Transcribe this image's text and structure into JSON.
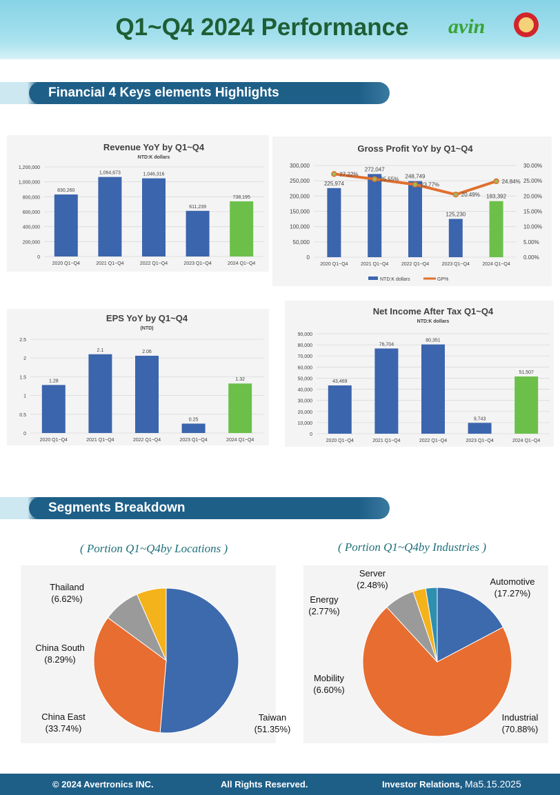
{
  "header": {
    "title": "Q1~Q4 2024 Performance",
    "logo_text": "avin"
  },
  "sections": {
    "highlights": "Financial 4 Keys elements Highlights",
    "segments": "Segments Breakdown"
  },
  "colors": {
    "bar_blue": "#3b65ad",
    "bar_green": "#6cc04a",
    "gp_line": "#e0702f",
    "pie_blue": "#3d6aad",
    "pie_orange": "#e76d30",
    "pie_gray": "#9a9a9a",
    "pie_yellow": "#f4b21b",
    "pie_teal": "#2e8fb0"
  },
  "chart_data": [
    {
      "type": "bar",
      "title": "Revenue YoY by Q1~Q4",
      "subtitle": "NTD:K dollars",
      "categories": [
        "2020 Q1~Q4",
        "2021 Q1~Q4",
        "2022 Q1~Q4",
        "2023 Q1~Q4",
        "2024 Q1~Q4"
      ],
      "values": [
        830260,
        1064673,
        1046316,
        611239,
        738195
      ],
      "value_labels": [
        "830,260",
        "1,064,673",
        "1,046,316",
        "611,239",
        "738,195"
      ],
      "ylim": [
        0,
        1200000
      ],
      "yticks": [
        "0",
        "200,000",
        "400,000",
        "600,000",
        "800,000",
        "1,000,000",
        "1,200,000"
      ]
    },
    {
      "type": "bar",
      "title": "Gross Profit YoY by Q1~Q4",
      "categories": [
        "2020 Q1~Q4",
        "2021 Q1~Q4",
        "2022 Q1~Q4",
        "2023 Q1~Q4",
        "2024 Q1~Q4"
      ],
      "values": [
        225974,
        272047,
        248749,
        125230,
        183392
      ],
      "value_labels": [
        "225,974",
        "272,047",
        "248,749",
        "125,230",
        "183,392"
      ],
      "ylim": [
        0,
        300000
      ],
      "yticks": [
        "0",
        "50,000",
        "100,000",
        "150,000",
        "200,000",
        "250,000",
        "300,000"
      ],
      "line": {
        "values": [
          27.22,
          25.55,
          23.77,
          20.49,
          24.84
        ],
        "labels": [
          "27.22%",
          "25.55%",
          "23.77%",
          "20.49%",
          "24.84%"
        ],
        "ylim": [
          0,
          30
        ]
      },
      "y2ticks": [
        "0.00%",
        "5.00%",
        "10.00%",
        "15.00%",
        "20.00%",
        "25.00%",
        "30.00%"
      ],
      "legend": [
        "NTD:K dollars",
        "GP%"
      ]
    },
    {
      "type": "bar",
      "title": "EPS YoY by Q1~Q4",
      "subtitle": "(NTD)",
      "categories": [
        "2020 Q1~Q4",
        "2021 Q1~Q4",
        "2022 Q1~Q4",
        "2023 Q1~Q4",
        "2024 Q1~Q4"
      ],
      "values": [
        1.28,
        2.1,
        2.06,
        0.25,
        1.32
      ],
      "value_labels": [
        "1.28",
        "2.1",
        "2.06",
        "0.25",
        "1.32"
      ],
      "ylim": [
        0,
        2.5
      ],
      "yticks": [
        "0",
        "0.5",
        "1",
        "1.5",
        "2",
        "2.5"
      ]
    },
    {
      "type": "bar",
      "title": "Net Income After Tax Q1~Q4",
      "subtitle": "NTD:K dollars",
      "categories": [
        "2020 Q1~Q4",
        "2021 Q1~Q4",
        "2022 Q1~Q4",
        "2023 Q1~Q4",
        "2024 Q1~Q4"
      ],
      "values": [
        43469,
        76704,
        80351,
        9743,
        51507
      ],
      "value_labels": [
        "43,469",
        "76,704",
        "80,351",
        "9,743",
        "51,507"
      ],
      "ylim": [
        0,
        90000
      ],
      "yticks": [
        "0",
        "10,000",
        "20,000",
        "30,000",
        "40,000",
        "50,000",
        "60,000",
        "70,000",
        "80,000",
        "90,000"
      ]
    },
    {
      "type": "pie",
      "title": "( Portion Q1~Q4by Locations )",
      "slices": [
        {
          "label": "Taiwan",
          "value": 51.35,
          "text": "(51.35%)"
        },
        {
          "label": "China East",
          "value": 33.74,
          "text": "(33.74%)"
        },
        {
          "label": "China South",
          "value": 8.29,
          "text": "(8.29%)"
        },
        {
          "label": "Thailand",
          "value": 6.62,
          "text": "(6.62%)"
        }
      ]
    },
    {
      "type": "pie",
      "title": "( Portion Q1~Q4by Industries )",
      "slices": [
        {
          "label": "Automotive",
          "value": 17.27,
          "text": "(17.27%)"
        },
        {
          "label": "Industrial",
          "value": 70.88,
          "text": "(70.88%)"
        },
        {
          "label": "Mobility",
          "value": 6.6,
          "text": "(6.60%)"
        },
        {
          "label": "Energy",
          "value": 2.77,
          "text": "(2.77%)"
        },
        {
          "label": "Server",
          "value": 2.48,
          "text": "(2.48%)"
        }
      ]
    }
  ],
  "footer": {
    "copyright": "© 2024 Avertronics INC.",
    "rights": "All Rights Reserved.",
    "ir": "Investor Relations,",
    "date": "Ma5.15.2025"
  }
}
